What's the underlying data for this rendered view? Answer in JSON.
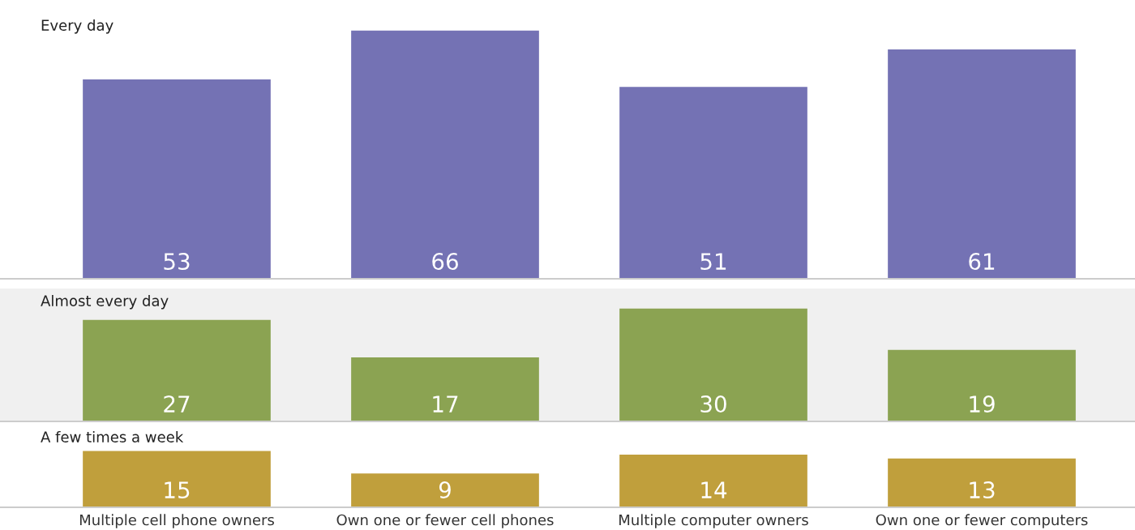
{
  "chart_data": [
    {
      "type": "bar",
      "title": "Every day",
      "categories": [
        null,
        null,
        null,
        null
      ],
      "values": [
        53,
        66,
        51,
        61
      ],
      "color": "#7472b4",
      "data_labels": true,
      "tick_labels": false
    },
    {
      "type": "bar",
      "title": "Almost every day",
      "categories": [
        null,
        null,
        null,
        null
      ],
      "values": [
        27,
        17,
        30,
        19
      ],
      "color": "#8ba352",
      "data_labels": true,
      "tick_labels": false
    },
    {
      "type": "bar",
      "title": "A few times a week",
      "categories": [
        "Multiple cell phone owners",
        "Own one or fewer cell phones",
        "Multiple computer owners",
        "Own one or fewer computers"
      ],
      "values": [
        15,
        9,
        14,
        13
      ],
      "color": "#c09f3c",
      "data_labels": true,
      "tick_labels": "x"
    }
  ]
}
